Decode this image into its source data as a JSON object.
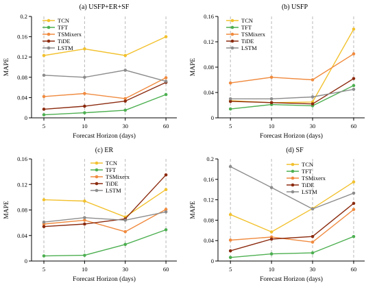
{
  "chart_data": [
    {
      "type": "line",
      "title": "(a) USFP+ER+SF",
      "xlabel": "Forecast Horizon (days)",
      "ylabel": "MAPE",
      "categories": [
        "5",
        "10",
        "30",
        "60"
      ],
      "ylim": [
        0,
        0.2
      ],
      "yticks": [
        "0",
        "0.04",
        "0.08",
        "0.12",
        "0.16",
        "0.2"
      ],
      "legend": "top-left",
      "series": [
        {
          "name": "TCN",
          "color": "#f2c12e",
          "values": [
            0.123,
            0.136,
            0.123,
            0.16
          ]
        },
        {
          "name": "TFT",
          "color": "#4caf50",
          "values": [
            0.006,
            0.01,
            0.015,
            0.046
          ]
        },
        {
          "name": "TSMixerx",
          "color": "#f08a3e",
          "values": [
            0.042,
            0.048,
            0.038,
            0.079
          ]
        },
        {
          "name": "TiDE",
          "color": "#8b2a0e",
          "values": [
            0.017,
            0.023,
            0.033,
            0.07
          ]
        },
        {
          "name": "LSTM",
          "color": "#8c8c8c",
          "values": [
            0.084,
            0.08,
            0.094,
            0.072
          ]
        }
      ]
    },
    {
      "type": "line",
      "title": "(b) USFP",
      "xlabel": "Forecast Horizon (days)",
      "ylabel": "MAPE",
      "categories": [
        "5",
        "10",
        "30",
        "60"
      ],
      "ylim": [
        0,
        0.16
      ],
      "yticks": [
        "0",
        "0.04",
        "0.08",
        "0.12",
        "0.16"
      ],
      "legend": "top-left",
      "series": [
        {
          "name": "TCN",
          "color": "#f2c12e",
          "values": [
            0.027,
            0.024,
            0.025,
            0.14
          ]
        },
        {
          "name": "TFT",
          "color": "#4caf50",
          "values": [
            0.014,
            0.021,
            0.019,
            0.051
          ]
        },
        {
          "name": "TSMixerx",
          "color": "#f08a3e",
          "values": [
            0.055,
            0.064,
            0.06,
            0.101
          ]
        },
        {
          "name": "TiDE",
          "color": "#8b2a0e",
          "values": [
            0.026,
            0.024,
            0.022,
            0.062
          ]
        },
        {
          "name": "LSTM",
          "color": "#8c8c8c",
          "values": [
            0.03,
            0.03,
            0.033,
            0.045
          ]
        }
      ]
    },
    {
      "type": "line",
      "title": "(c) ER",
      "xlabel": "Forecast Horizon (days)",
      "ylabel": "MAPE",
      "categories": [
        "5",
        "10",
        "30",
        "60"
      ],
      "ylim": [
        0,
        0.16
      ],
      "yticks": [
        "0",
        "0.04",
        "0.08",
        "0.12",
        "0.16"
      ],
      "legend": "top-center",
      "series": [
        {
          "name": "TCN",
          "color": "#f2c12e",
          "values": [
            0.096,
            0.094,
            0.069,
            0.112
          ]
        },
        {
          "name": "TFT",
          "color": "#4caf50",
          "values": [
            0.008,
            0.009,
            0.026,
            0.049
          ]
        },
        {
          "name": "TSMixerx",
          "color": "#f08a3e",
          "values": [
            0.058,
            0.064,
            0.046,
            0.081
          ]
        },
        {
          "name": "TiDE",
          "color": "#8b2a0e",
          "values": [
            0.054,
            0.058,
            0.066,
            0.135
          ]
        },
        {
          "name": "LSTM",
          "color": "#8c8c8c",
          "values": [
            0.061,
            0.068,
            0.064,
            0.077
          ]
        }
      ]
    },
    {
      "type": "line",
      "title": "(d) SF",
      "xlabel": "Forecast Horizon (days)",
      "ylabel": "MAPE",
      "categories": [
        "5",
        "10",
        "30",
        "60"
      ],
      "ylim": [
        0,
        0.2
      ],
      "yticks": [
        "0",
        "0.04",
        "0.08",
        "0.12",
        "0.16",
        "0.2"
      ],
      "legend": "top-center",
      "series": [
        {
          "name": "TCN",
          "color": "#f2c12e",
          "values": [
            0.091,
            0.057,
            0.103,
            0.155
          ]
        },
        {
          "name": "TFT",
          "color": "#4caf50",
          "values": [
            0.007,
            0.014,
            0.016,
            0.048
          ]
        },
        {
          "name": "TSMixerx",
          "color": "#f08a3e",
          "values": [
            0.041,
            0.047,
            0.037,
            0.101
          ]
        },
        {
          "name": "TiDE",
          "color": "#8b2a0e",
          "values": [
            0.02,
            0.043,
            0.048,
            0.113
          ]
        },
        {
          "name": "LSTM",
          "color": "#8c8c8c",
          "values": [
            0.185,
            0.144,
            0.102,
            0.133
          ]
        }
      ]
    }
  ]
}
